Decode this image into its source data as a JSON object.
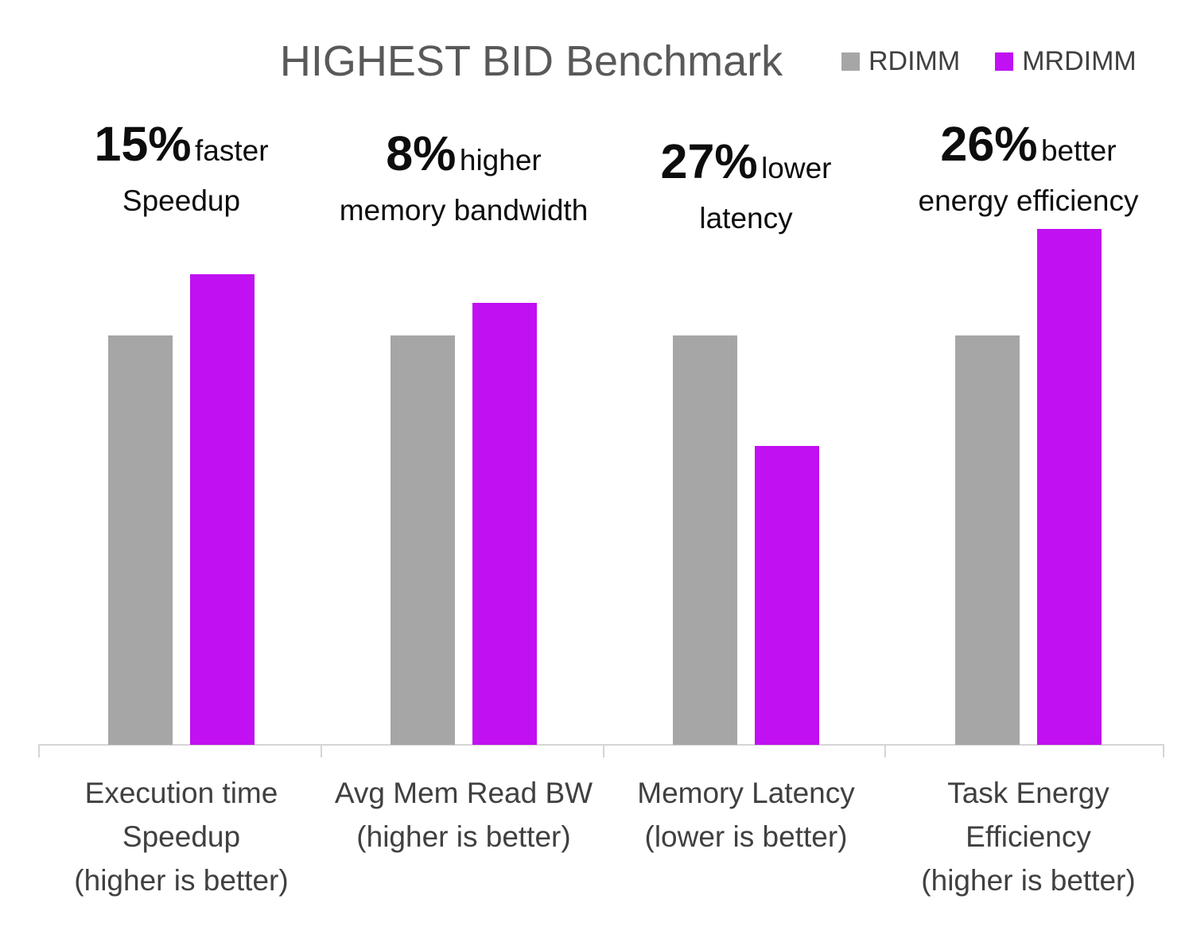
{
  "title": "HIGHEST BID Benchmark",
  "legend": [
    {
      "label": "RDIMM",
      "color": "#a6a6a6"
    },
    {
      "label": "MRDIMM",
      "color": "#c110f2"
    }
  ],
  "colors": {
    "rdimm_bar": "#a6a6a6",
    "mrdimm_bar": "#c110f2",
    "title_text": "#595959",
    "axis_label_text": "#404040",
    "annotation_text": "#0d0d0d",
    "axis_line": "#d6d4d4"
  },
  "chart_data": {
    "type": "bar",
    "title": "HIGHEST BID Benchmark",
    "grid": false,
    "legend_position": "top-right",
    "xlabel": "",
    "ylabel": "",
    "ylim": [
      0,
      1.35
    ],
    "y_axis_shown": false,
    "categories": [
      "Execution time Speedup (higher is better)",
      "Avg Mem Read BW (higher is better)",
      "Memory Latency (lower is better)",
      "Task Energy Efficiency (higher is better)"
    ],
    "series": [
      {
        "name": "RDIMM",
        "values": [
          1.0,
          1.0,
          1.0,
          1.0
        ]
      },
      {
        "name": "MRDIMM",
        "values": [
          1.15,
          1.08,
          0.73,
          1.26
        ]
      }
    ],
    "annotations": [
      {
        "pct": "15%",
        "word": "faster",
        "line2": "Speedup"
      },
      {
        "pct": "8%",
        "word": "higher",
        "line2": "memory bandwidth"
      },
      {
        "pct": "27%",
        "word": "lower",
        "line2": "latency"
      },
      {
        "pct": "26%",
        "word": "better",
        "line2": "energy efficiency"
      }
    ]
  },
  "x_labels": [
    [
      "Execution time",
      "Speedup",
      "(higher is better)"
    ],
    [
      "Avg Mem Read BW",
      "(higher is better)"
    ],
    [
      "Memory Latency",
      "(lower is better)"
    ],
    [
      "Task Energy",
      "Efficiency",
      "(higher is better)"
    ]
  ]
}
